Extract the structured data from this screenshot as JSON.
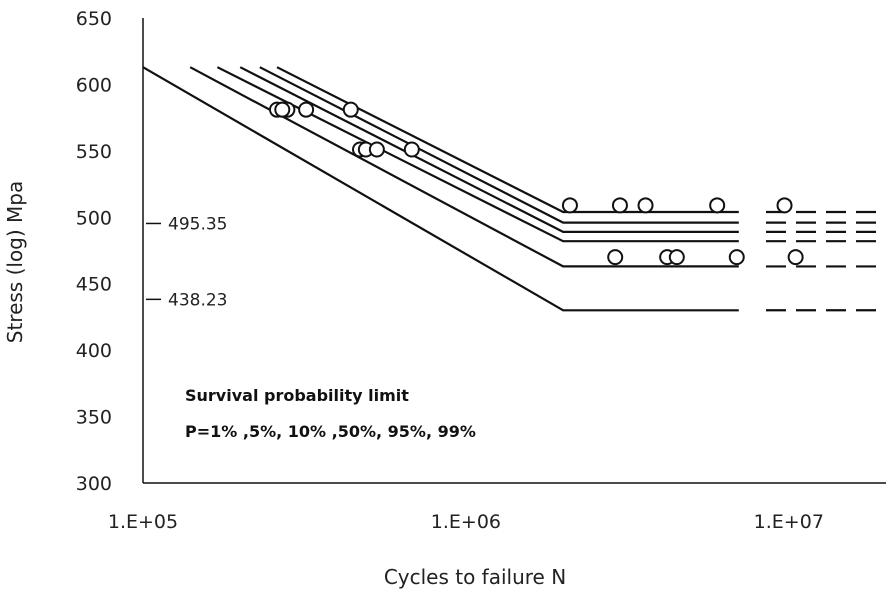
{
  "chart_data": {
    "type": "line",
    "title": "",
    "xlabel": "Cycles to failure N",
    "ylabel": "Stress (log) Mpa",
    "x_scale": "log",
    "xlim": [
      100000,
      20000000
    ],
    "ylim": [
      300,
      650
    ],
    "x_ticks": [
      100000,
      1000000,
      10000000
    ],
    "x_tick_labels": [
      "1.E+05",
      "1.E+06",
      "1.E+07"
    ],
    "y_ticks": [
      300,
      350,
      400,
      450,
      500,
      550,
      600,
      650
    ],
    "y_tick_labels": [
      "300",
      "350",
      "400",
      "450",
      "500",
      "550",
      "600",
      "650"
    ],
    "grid": false,
    "series": [
      {
        "color": "#111111",
        "points": [
          [
            100000,
            613
          ],
          [
            2000000,
            430
          ],
          [
            7000000,
            430
          ]
        ],
        "extension": [
          [
            8500000,
            430
          ],
          [
            20000000,
            430
          ]
        ]
      },
      {
        "color": "#111111",
        "points": [
          [
            140000,
            613
          ],
          [
            2000000,
            463
          ],
          [
            7000000,
            463
          ]
        ],
        "extension": [
          [
            8500000,
            463
          ],
          [
            20000000,
            463
          ]
        ]
      },
      {
        "color": "#111111",
        "points": [
          [
            170000,
            613
          ],
          [
            2000000,
            482
          ],
          [
            7000000,
            482
          ]
        ],
        "extension": [
          [
            8500000,
            482
          ],
          [
            20000000,
            482
          ]
        ]
      },
      {
        "color": "#111111",
        "points": [
          [
            200000,
            613
          ],
          [
            2000000,
            489
          ],
          [
            7000000,
            489
          ]
        ],
        "extension": [
          [
            8500000,
            489
          ],
          [
            20000000,
            489
          ]
        ]
      },
      {
        "color": "#111111",
        "points": [
          [
            230000,
            613
          ],
          [
            2000000,
            496
          ],
          [
            7000000,
            496
          ]
        ],
        "extension": [
          [
            8500000,
            496
          ],
          [
            20000000,
            496
          ]
        ]
      },
      {
        "color": "#111111",
        "points": [
          [
            260000,
            613
          ],
          [
            2000000,
            504
          ],
          [
            7000000,
            504
          ]
        ],
        "extension": [
          [
            8500000,
            504
          ],
          [
            20000000,
            504
          ]
        ]
      }
    ],
    "scatter": [
      [
        260000,
        581
      ],
      [
        280000,
        581
      ],
      [
        270000,
        581
      ],
      [
        320000,
        581
      ],
      [
        440000,
        581
      ],
      [
        470000,
        551
      ],
      [
        490000,
        551
      ],
      [
        530000,
        551
      ],
      [
        680000,
        551
      ],
      [
        2100000,
        509
      ],
      [
        3000000,
        509
      ],
      [
        3600000,
        509
      ],
      [
        6000000,
        509
      ],
      [
        9700000,
        509
      ],
      [
        2900000,
        470
      ],
      [
        4200000,
        470
      ],
      [
        4500000,
        470
      ],
      [
        6900000,
        470
      ],
      [
        10500000,
        470
      ]
    ],
    "annotations": [
      {
        "label": "495.35",
        "y": 495.35
      },
      {
        "label": "438.23",
        "y": 438.23
      }
    ],
    "legend_text": {
      "line1": "Survival probability limit",
      "line2": "P=1% ,5%, 10% ,50%, 95%, 99%"
    }
  }
}
